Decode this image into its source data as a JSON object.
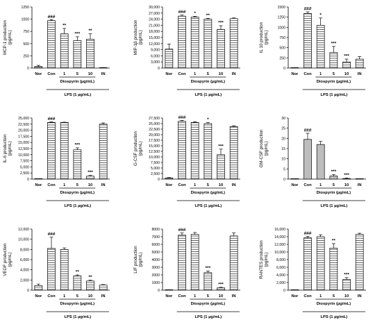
{
  "figure": {
    "categories": [
      "Nor",
      "Con",
      "1",
      "5",
      "10",
      "IN"
    ],
    "treatment_label": "Diospyrin (µg/mL)",
    "stimulus_label": "LPS (1 µg/mL)"
  },
  "chart_data": [
    {
      "type": "bar",
      "ylabel": "MCP-1 production\n(pg/mL)",
      "ylim": [
        0,
        1250
      ],
      "yticks": [
        "0",
        "250",
        "500",
        "750",
        "1000",
        "1250"
      ],
      "values": [
        30,
        970,
        700,
        560,
        590,
        5
      ],
      "errors": [
        25,
        20,
        110,
        80,
        110,
        5
      ],
      "annotations": [
        "",
        "###",
        "**",
        "***",
        "**",
        ""
      ],
      "fill": "hatch"
    },
    {
      "type": "bar",
      "ylabel": "MIP-1β production\n(pg/mL)",
      "ylim": [
        0,
        30000
      ],
      "yticks": [
        "0",
        "3,000",
        "6,000",
        "9,000",
        "12,000",
        "15,000",
        "18,000",
        "21,000",
        "24,000",
        "27,000",
        "30,000"
      ],
      "values": [
        9300,
        25500,
        25000,
        24000,
        19000,
        24300
      ],
      "errors": [
        2500,
        500,
        400,
        400,
        1800,
        300
      ],
      "annotations": [
        "",
        "###",
        "*",
        "**",
        "***",
        ""
      ],
      "fill": "hatch"
    },
    {
      "type": "bar",
      "ylabel": "IL 10 production\n(pg/mL)",
      "ylim": [
        0,
        1500
      ],
      "yticks": [
        "0",
        "250",
        "500",
        "750",
        "1000",
        "1250",
        "1500"
      ],
      "values": [
        0,
        1340,
        1050,
        380,
        150,
        220
      ],
      "errors": [
        0,
        40,
        180,
        150,
        70,
        60
      ],
      "annotations": [
        "",
        "###",
        "*",
        "***",
        "***",
        ""
      ],
      "fill": "hatch"
    },
    {
      "type": "bar",
      "ylabel": "IL-6 production\n(pg/mL)",
      "ylim": [
        0,
        25000
      ],
      "yticks": [
        "0",
        "2,500",
        "5,000",
        "7,500",
        "10,000",
        "12,500",
        "15,000",
        "17,500",
        "20,000",
        "22,500",
        "25,000"
      ],
      "values": [
        0,
        23200,
        23200,
        12000,
        1200,
        22500
      ],
      "errors": [
        0,
        200,
        100,
        800,
        300,
        500
      ],
      "annotations": [
        "",
        "###",
        "",
        "***",
        "***",
        ""
      ],
      "fill": "hatch"
    },
    {
      "type": "bar",
      "ylabel": "G-CSF production\n(pg/mL)",
      "ylim": [
        0,
        27500
      ],
      "yticks": [
        "0",
        "2,500",
        "5,000",
        "7,500",
        "10,000",
        "12,500",
        "15,000",
        "17,500",
        "20,000",
        "22,500",
        "25,000",
        "27,500"
      ],
      "values": [
        500,
        26000,
        25500,
        25000,
        11000,
        23700
      ],
      "errors": [
        200,
        400,
        300,
        400,
        2500,
        300
      ],
      "annotations": [
        "",
        "###",
        "",
        "*",
        "***",
        ""
      ],
      "fill": "hatch"
    },
    {
      "type": "bar",
      "ylabel": "GM-CSF production\n(pg/mL)",
      "ylim": [
        0,
        30
      ],
      "yticks": [
        "0",
        "5",
        "10",
        "15",
        "20",
        "25",
        "30"
      ],
      "values": [
        0,
        19.5,
        17,
        1.5,
        0.3,
        0
      ],
      "errors": [
        0,
        3,
        1.5,
        0.7,
        0.2,
        0
      ],
      "annotations": [
        "",
        "###",
        "",
        "***",
        "***",
        ""
      ],
      "fill": "gray"
    },
    {
      "type": "bar",
      "ylabel": "VEGF production\n(pg/mL)",
      "ylim": [
        0,
        12000
      ],
      "yticks": [
        "0",
        "2,000",
        "4,000",
        "6,000",
        "8,000",
        "10,000",
        "12,000"
      ],
      "values": [
        900,
        8200,
        8000,
        2800,
        1800,
        1000
      ],
      "errors": [
        300,
        2200,
        300,
        200,
        150,
        100
      ],
      "annotations": [
        "",
        "###",
        "",
        "**",
        "**",
        ""
      ],
      "fill": "hatch"
    },
    {
      "type": "bar",
      "ylabel": "LIF production\n(pg/mL)",
      "ylim": [
        0,
        8000
      ],
      "yticks": [
        "0",
        "1000",
        "2000",
        "3000",
        "4000",
        "5000",
        "6000",
        "7000",
        "8000"
      ],
      "values": [
        0,
        7200,
        7300,
        2300,
        300,
        7100
      ],
      "errors": [
        0,
        300,
        250,
        200,
        80,
        400
      ],
      "annotations": [
        "",
        "###",
        "",
        "***",
        "***",
        ""
      ],
      "fill": "hatch"
    },
    {
      "type": "bar",
      "ylabel": "RANTES production\n(pg/mL)",
      "ylim": [
        0,
        16000
      ],
      "yticks": [
        "0",
        "2,000",
        "4,000",
        "6,000",
        "8,000",
        "10,000",
        "12,000",
        "14,000",
        "16,000"
      ],
      "values": [
        0,
        13700,
        14000,
        11000,
        2800,
        14600
      ],
      "errors": [
        0,
        400,
        500,
        1200,
        500,
        300
      ],
      "annotations": [
        "",
        "###",
        "",
        "**",
        "***",
        ""
      ],
      "fill": "hatch"
    }
  ]
}
